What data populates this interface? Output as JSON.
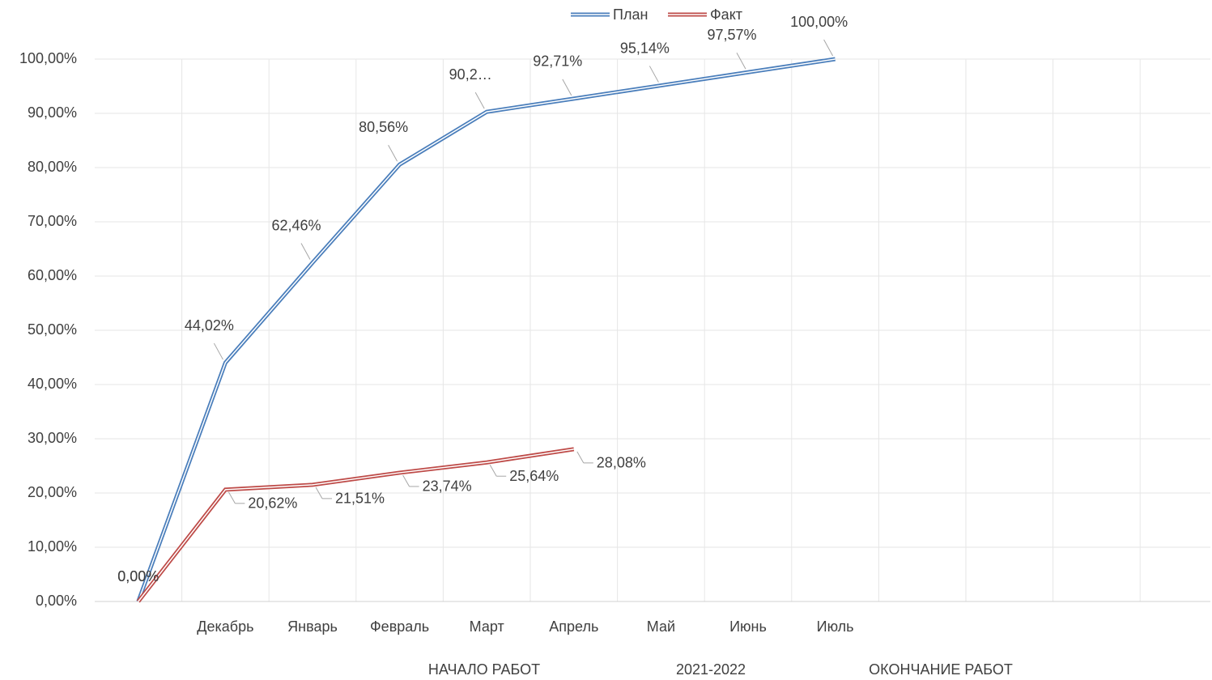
{
  "chart_data": {
    "type": "line",
    "categories": [
      null,
      "Декабрь",
      "Январь",
      "Февраль",
      "Март",
      "Апрель",
      "Май",
      "Июнь",
      "Июль",
      null,
      null,
      null,
      null
    ],
    "series": [
      {
        "name": "План",
        "color": "#4a7ebb",
        "values": [
          0,
          44.02,
          62.46,
          80.56,
          90.28,
          92.71,
          95.14,
          97.57,
          100,
          null,
          null,
          null,
          null
        ],
        "value_labels": [
          "0,00%",
          "44,02%",
          "62,46%",
          "80,56%",
          "90,2…",
          "92,71%",
          "95,14%",
          "97,57%",
          "100,00%",
          null,
          null,
          null,
          null
        ]
      },
      {
        "name": "Факт",
        "color": "#be4b48",
        "values": [
          0,
          20.62,
          21.51,
          23.74,
          25.64,
          28.08,
          null,
          null,
          null,
          null,
          null,
          null,
          null
        ],
        "value_labels": [
          "0,00%",
          "20,62%",
          "21,51%",
          "23,74%",
          "25,64%",
          "28,08%",
          null,
          null,
          null,
          null,
          null,
          null,
          null
        ]
      }
    ],
    "ylim": [
      0,
      100
    ],
    "yticks": [
      {
        "value": 0,
        "label": "0,00%"
      },
      {
        "value": 10,
        "label": "10,00%"
      },
      {
        "value": 20,
        "label": "20,00%"
      },
      {
        "value": 30,
        "label": "30,00%"
      },
      {
        "value": 40,
        "label": "40,00%"
      },
      {
        "value": 50,
        "label": "50,00%"
      },
      {
        "value": 60,
        "label": "60,00%"
      },
      {
        "value": 70,
        "label": "70,00%"
      },
      {
        "value": 80,
        "label": "80,00%"
      },
      {
        "value": 90,
        "label": "90,00%"
      },
      {
        "value": 100,
        "label": "100,00%"
      }
    ],
    "grid": true,
    "legend": "top",
    "annotations": [
      "НАЧАЛО РАБОТ",
      "2021-2022",
      "ОКОНЧАНИЕ РАБОТ"
    ]
  }
}
